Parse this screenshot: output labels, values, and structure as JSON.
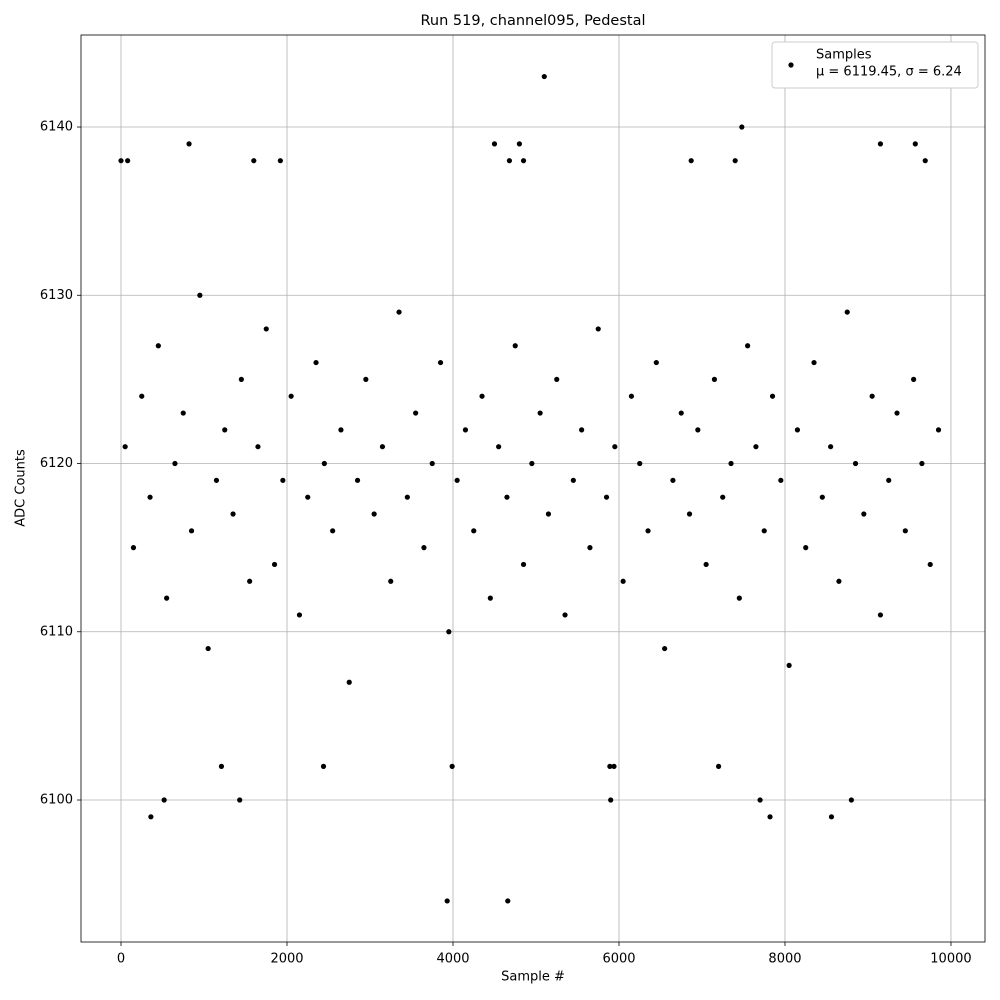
{
  "chart_data": {
    "type": "scatter",
    "title": "Run 519, channel095, Pedestal",
    "x_label": "Sample #",
    "y_label": "ADC Counts",
    "xlim": [
      -482,
      10410
    ],
    "ylim": [
      6091.56,
      6145.47
    ],
    "xticks": [
      0,
      2000,
      4000,
      6000,
      8000,
      10000
    ],
    "yticks": [
      6100,
      6110,
      6120,
      6130,
      6140
    ],
    "grid": true,
    "legend_position": "upper right",
    "legend_note": "μ = 6119.45, σ = 6.24",
    "x": [
      3930,
      4660,
      5100,
      7480,
      820,
      4500,
      4800,
      9150,
      9570,
      360,
      7820,
      8560,
      520,
      1430,
      5900,
      7700,
      8800,
      0,
      80,
      1600,
      1920,
      4680,
      4850,
      6870,
      7400,
      9690,
      3990,
      1210,
      2440,
      5890,
      5940,
      7200,
      50,
      150,
      250,
      350,
      450,
      550,
      650,
      750,
      850,
      950,
      1050,
      1150,
      1250,
      1350,
      1450,
      1550,
      1650,
      1750,
      1850,
      1950,
      2050,
      2150,
      2250,
      2350,
      2450,
      2550,
      2650,
      2750,
      2850,
      2950,
      3050,
      3150,
      3250,
      3350,
      3450,
      3550,
      3650,
      3750,
      3850,
      3950,
      4050,
      4150,
      4250,
      4350,
      4450,
      4550,
      4650,
      4750,
      4850,
      4950,
      5050,
      5150,
      5250,
      5350,
      5450,
      5550,
      5650,
      5750,
      5850,
      5950,
      6050,
      6150,
      6250,
      6350,
      6450,
      6550,
      6650,
      6750,
      6850,
      6950,
      7050,
      7150,
      7250,
      7350,
      7450,
      7550,
      7650,
      7750,
      7850,
      7950,
      8050,
      8150,
      8250,
      8350,
      8450,
      8550,
      8650,
      8750,
      8850,
      8950,
      9050,
      9150,
      9250,
      9350,
      9450,
      9550,
      9650,
      9750,
      9850
    ],
    "series": [
      {
        "name": "Samples",
        "color": "#000000",
        "values": [
          6094,
          6094,
          6143,
          6140,
          6139,
          6139,
          6139,
          6139,
          6139,
          6099,
          6099,
          6099,
          6100,
          6100,
          6100,
          6100,
          6100,
          6138,
          6138,
          6138,
          6138,
          6138,
          6138,
          6138,
          6138,
          6138,
          6102,
          6102,
          6102,
          6102,
          6102,
          6102,
          6121,
          6115,
          6124,
          6118,
          6127,
          6112,
          6120,
          6123,
          6116,
          6130,
          6109,
          6119,
          6122,
          6117,
          6125,
          6113,
          6121,
          6128,
          6114,
          6119,
          6124,
          6111,
          6118,
          6126,
          6120,
          6116,
          6122,
          6107,
          6119,
          6125,
          6117,
          6121,
          6113,
          6129,
          6118,
          6123,
          6115,
          6120,
          6126,
          6110,
          6119,
          6122,
          6116,
          6124,
          6112,
          6121,
          6118,
          6127,
          6114,
          6120,
          6123,
          6117,
          6125,
          6111,
          6119,
          6122,
          6115,
          6128,
          6118,
          6121,
          6113,
          6124,
          6120,
          6116,
          6126,
          6109,
          6119,
          6123,
          6117,
          6122,
          6114,
          6125,
          6118,
          6120,
          6112,
          6127,
          6121,
          6116,
          6124,
          6119,
          6108,
          6122,
          6115,
          6126,
          6118,
          6121,
          6113,
          6129,
          6120,
          6117,
          6124,
          6111,
          6119,
          6123,
          6116,
          6125,
          6120,
          6114,
          6122
        ]
      }
    ]
  }
}
